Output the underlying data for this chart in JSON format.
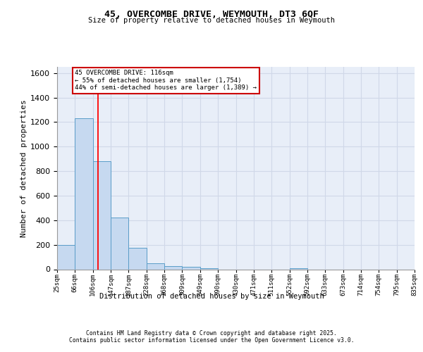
{
  "title_line1": "45, OVERCOMBE DRIVE, WEYMOUTH, DT3 6QF",
  "title_line2": "Size of property relative to detached houses in Weymouth",
  "xlabel": "Distribution of detached houses by size in Weymouth",
  "ylabel": "Number of detached properties",
  "bin_labels": [
    "25sqm",
    "66sqm",
    "106sqm",
    "147sqm",
    "187sqm",
    "228sqm",
    "268sqm",
    "309sqm",
    "349sqm",
    "390sqm",
    "430sqm",
    "471sqm",
    "511sqm",
    "552sqm",
    "592sqm",
    "633sqm",
    "673sqm",
    "714sqm",
    "754sqm",
    "795sqm",
    "835sqm"
  ],
  "bar_values": [
    200,
    1230,
    880,
    420,
    175,
    50,
    25,
    20,
    10,
    0,
    0,
    0,
    0,
    10,
    0,
    0,
    0,
    0,
    0,
    0
  ],
  "bar_color": "#c6d9f0",
  "bar_edge_color": "#5a9dc8",
  "background_color": "#e8eef8",
  "grid_color": "#d0d8e8",
  "red_line_x": 2.27,
  "annotation_text": "45 OVERCOMBE DRIVE: 116sqm\n← 55% of detached houses are smaller (1,754)\n44% of semi-detached houses are larger (1,389) →",
  "annotation_box_edgecolor": "#cc0000",
  "ylim_max": 1650,
  "yticks": [
    0,
    200,
    400,
    600,
    800,
    1000,
    1200,
    1400,
    1600
  ],
  "footer_line1": "Contains HM Land Registry data © Crown copyright and database right 2025.",
  "footer_line2": "Contains public sector information licensed under the Open Government Licence v3.0."
}
